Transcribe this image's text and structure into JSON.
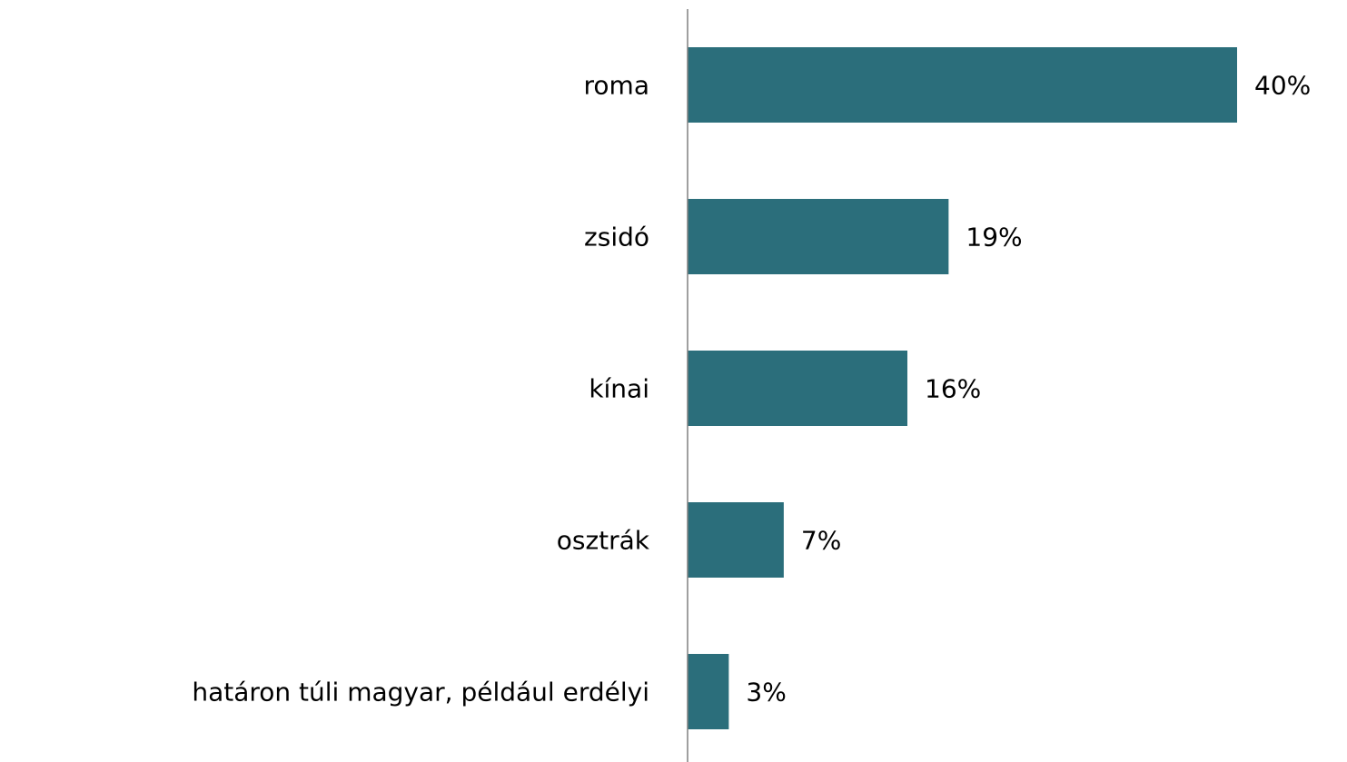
{
  "chart_data": {
    "type": "bar",
    "orientation": "horizontal",
    "categories": [
      "roma",
      "zsidó",
      "kínai",
      "osztrák",
      "határon túli magyar, például erdélyi"
    ],
    "values": [
      40,
      19,
      16,
      7,
      3
    ],
    "value_labels": [
      "40%",
      "19%",
      "16%",
      "7%",
      "3%"
    ],
    "color": "#2b6e7b",
    "xlim": [
      0,
      48
    ]
  }
}
